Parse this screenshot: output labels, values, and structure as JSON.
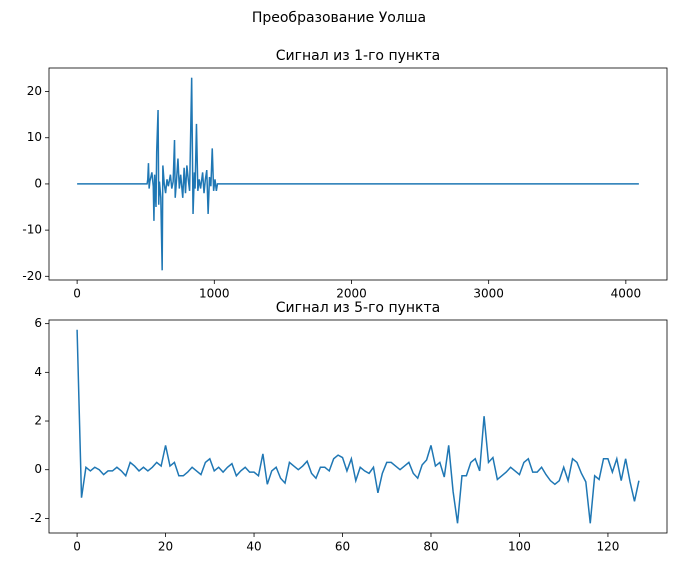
{
  "figure_title": "Преобразование Уолша",
  "chart_data": [
    {
      "type": "line",
      "title": "Сигнал из 1-го пункта",
      "x": [
        0,
        510,
        515,
        520,
        525,
        530,
        545,
        555,
        560,
        565,
        575,
        580,
        590,
        595,
        600,
        610,
        620,
        625,
        635,
        645,
        655,
        665,
        680,
        690,
        700,
        710,
        715,
        725,
        735,
        745,
        755,
        770,
        780,
        790,
        800,
        810,
        820,
        835,
        845,
        855,
        860,
        870,
        880,
        890,
        900,
        915,
        925,
        935,
        945,
        955,
        965,
        975,
        985,
        995,
        1005,
        1015,
        1023,
        4095
      ],
      "values": [
        0,
        0,
        1,
        4.5,
        -1,
        0.5,
        2.5,
        -0.5,
        -8,
        2,
        -5,
        7,
        16,
        -4.5,
        0.5,
        -3,
        -18.7,
        4,
        0,
        -2,
        1,
        -0.5,
        2,
        -1,
        0.5,
        9.5,
        -3,
        1,
        5.5,
        -1,
        2,
        -3,
        3.5,
        -2,
        4,
        1,
        -1.5,
        23,
        -6.5,
        2.5,
        -1,
        13,
        -1.5,
        1,
        -1,
        2.5,
        -2,
        1,
        3,
        -6.5,
        1.5,
        -0.5,
        7.7,
        -1.5,
        1,
        -1.5,
        0,
        0
      ],
      "color": "#1f77b4",
      "xlim": [
        -205,
        4300
      ],
      "xticks": [
        0,
        1000,
        2000,
        3000,
        4000
      ],
      "ylim": [
        -20.8,
        25.1
      ],
      "yticks": [
        -20,
        -10,
        0,
        10,
        20
      ],
      "grid": false
    },
    {
      "type": "line",
      "title": "Сигнал из 5-го пункта",
      "x": [
        0,
        1,
        2,
        3,
        4,
        5,
        6,
        7,
        8,
        9,
        10,
        11,
        12,
        13,
        14,
        15,
        16,
        17,
        18,
        19,
        20,
        21,
        22,
        23,
        24,
        25,
        26,
        27,
        28,
        29,
        30,
        31,
        32,
        33,
        34,
        35,
        36,
        37,
        38,
        39,
        40,
        41,
        42,
        43,
        44,
        45,
        46,
        47,
        48,
        49,
        50,
        51,
        52,
        53,
        54,
        55,
        56,
        57,
        58,
        59,
        60,
        61,
        62,
        63,
        64,
        65,
        66,
        67,
        68,
        69,
        70,
        71,
        72,
        73,
        74,
        75,
        76,
        77,
        78,
        79,
        80,
        81,
        82,
        83,
        84,
        85,
        86,
        87,
        88,
        89,
        90,
        91,
        92,
        93,
        94,
        95,
        96,
        97,
        98,
        99,
        100,
        101,
        102,
        103,
        104,
        105,
        106,
        107,
        108,
        109,
        110,
        111,
        112,
        113,
        114,
        115,
        116,
        117,
        118,
        119,
        120,
        121,
        122,
        123,
        124,
        125,
        126,
        127
      ],
      "values": [
        5.75,
        -1.15,
        0.1,
        -0.05,
        0.1,
        0,
        -0.2,
        -0.05,
        -0.05,
        0.1,
        -0.05,
        -0.25,
        0.3,
        0.15,
        -0.05,
        0.1,
        -0.05,
        0.1,
        0.3,
        0.15,
        1.0,
        0.15,
        0.3,
        -0.25,
        -0.25,
        -0.1,
        0.1,
        -0.05,
        -0.2,
        0.3,
        0.45,
        -0.05,
        0.1,
        -0.1,
        0.1,
        0.25,
        -0.25,
        -0.05,
        0.1,
        -0.1,
        -0.1,
        -0.25,
        0.65,
        -0.6,
        -0.05,
        0.1,
        -0.35,
        -0.55,
        0.3,
        0.15,
        0,
        0.15,
        0.35,
        -0.15,
        -0.35,
        0.1,
        0.1,
        -0.05,
        0.45,
        0.6,
        0.5,
        -0.05,
        0.45,
        -0.45,
        0.1,
        -0.05,
        -0.15,
        0.1,
        -0.95,
        -0.15,
        0.3,
        0.3,
        0.15,
        0,
        0.15,
        0.3,
        -0.15,
        -0.35,
        0.2,
        0.4,
        1.0,
        0.15,
        0.3,
        -0.3,
        1.0,
        -0.9,
        -2.2,
        -0.25,
        -0.25,
        0.3,
        0.45,
        -0.05,
        2.2,
        0.3,
        0.5,
        -0.4,
        -0.25,
        -0.1,
        0.1,
        -0.05,
        -0.2,
        0.3,
        0.45,
        -0.1,
        -0.1,
        0.1,
        -0.2,
        -0.45,
        -0.6,
        -0.45,
        0.1,
        -0.45,
        0.45,
        0.3,
        -0.15,
        -0.5,
        -2.2,
        -0.25,
        -0.4,
        0.45,
        0.45,
        -0.1,
        0.45,
        -0.45,
        0.45,
        -0.5,
        -1.3,
        -0.45
      ],
      "color": "#1f77b4",
      "xlim": [
        -6.35,
        133.35
      ],
      "xticks": [
        0,
        20,
        40,
        60,
        80,
        100,
        120
      ],
      "ylim": [
        -2.6,
        6.15
      ],
      "yticks": [
        -2,
        0,
        2,
        4,
        6
      ],
      "grid": false
    }
  ]
}
